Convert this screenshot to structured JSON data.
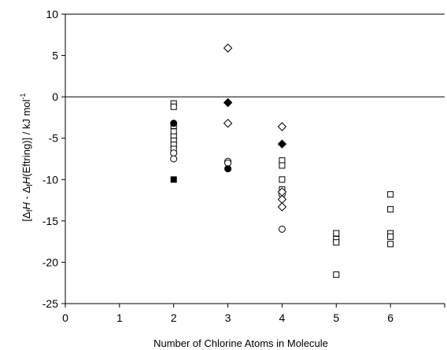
{
  "chart_data": {
    "type": "scatter",
    "xlabel": "Number of Chlorine Atoms in Molecule",
    "ylabel_parts": [
      "[Δ",
      "f",
      "H",
      " - Δ",
      "f",
      "H",
      "(Eftring)] / kJ mol",
      "-1"
    ],
    "xlim": [
      0,
      7
    ],
    "ylim": [
      -25,
      10
    ],
    "x_ticks": [
      "0",
      "1",
      "2",
      "3",
      "4",
      "5",
      "6"
    ],
    "x_tick_values": [
      0,
      1,
      2,
      3,
      4,
      5,
      6
    ],
    "y_ticks": [
      "10",
      "5",
      "0",
      "-5",
      "-10",
      "-15",
      "-20",
      "-25"
    ],
    "y_tick_values": [
      10,
      5,
      0,
      -5,
      -10,
      -15,
      -20,
      -25
    ],
    "zero_line": 0,
    "grid": false,
    "series": [
      {
        "marker": "square-open",
        "points": [
          [
            2,
            -0.8
          ],
          [
            2,
            -1.2
          ],
          [
            2,
            -3.5
          ],
          [
            2,
            -4.2
          ],
          [
            2,
            -4.8
          ],
          [
            2,
            -5.3
          ],
          [
            2,
            -5.8
          ],
          [
            2,
            -6.3
          ],
          [
            4,
            -7.7
          ],
          [
            4,
            -8.3
          ],
          [
            4,
            -10.0
          ],
          [
            4,
            -11.2
          ],
          [
            5,
            -16.5
          ],
          [
            5,
            -17.2
          ],
          [
            5,
            -17.6
          ],
          [
            5,
            -21.5
          ],
          [
            6,
            -11.8
          ],
          [
            6,
            -13.6
          ],
          [
            6,
            -16.5
          ],
          [
            6,
            -16.9
          ],
          [
            6,
            -17.8
          ]
        ]
      },
      {
        "marker": "square-filled",
        "points": [
          [
            2,
            -10.0
          ]
        ]
      },
      {
        "marker": "circle-open",
        "points": [
          [
            2,
            -6.8
          ],
          [
            2,
            -7.5
          ],
          [
            3,
            -7.8
          ],
          [
            3,
            -8.0
          ],
          [
            4,
            -11.8
          ],
          [
            4,
            -16.0
          ]
        ]
      },
      {
        "marker": "circle-filled",
        "points": [
          [
            2,
            -3.2
          ],
          [
            3,
            -8.7
          ]
        ]
      },
      {
        "marker": "diamond-open",
        "points": [
          [
            3,
            5.9
          ],
          [
            3,
            -3.2
          ],
          [
            4,
            -3.6
          ],
          [
            4,
            -11.5
          ],
          [
            4,
            -12.4
          ],
          [
            4,
            -13.3
          ]
        ]
      },
      {
        "marker": "diamond-filled",
        "points": [
          [
            3,
            -0.7
          ],
          [
            4,
            -5.7
          ]
        ]
      }
    ]
  }
}
